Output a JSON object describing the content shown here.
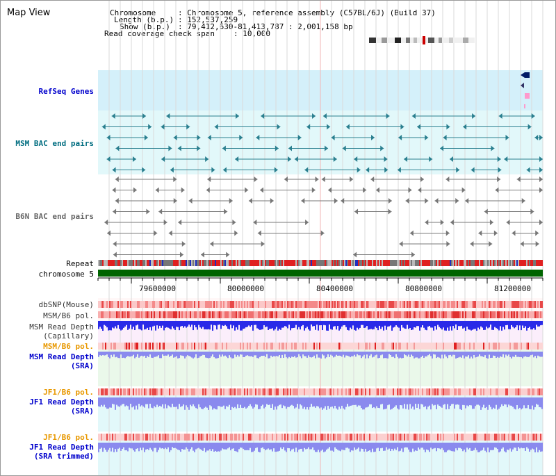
{
  "page": {
    "title": "Map View"
  },
  "info": {
    "chromosome_label": "Chromosome",
    "chromosome_value": ": Chromosome 5, reference assembly (C57BL/6J) (Build 37)",
    "length_label": "Length (b.p.)",
    "length_value": ": 152,537,259",
    "show_label": "Show (b.p.)",
    "show_value": ": 79,412,630-81,413,787 : 2,001,158 bp",
    "coverage_label": "Read coverage check span",
    "coverage_value": ": 10,000"
  },
  "tracks": {
    "refseq": "RefSeq Genes",
    "msm_bac": "MSM BAC end pairs",
    "b6n_bac": "B6N BAC end pairs",
    "repeat": "Repeat",
    "chromosome": "chromosome 5",
    "dbsnp": "dbSNP(Mouse)",
    "msm_b6_pol_1": "MSM/B6 pol.",
    "msm_read_depth_cap_1": "MSM Read Depth",
    "msm_read_depth_cap_2": "(Capillary)",
    "msm_b6_pol_2": "MSM/B6 pol.",
    "msm_read_depth_sra_1": "MSM Read Depth",
    "msm_read_depth_sra_2": "(SRA)",
    "jf1_b6_pol_1": "JF1/B6 pol.",
    "jf1_read_depth_sra_1": "JF1 Read Depth",
    "jf1_read_depth_sra_2": "(SRA)",
    "jf1_b6_pol_2": "JF1/B6 pol.",
    "jf1_read_depth_trim_1": "JF1 Read Depth",
    "jf1_read_depth_trim_2": "(SRA trimmed)"
  },
  "axis": {
    "ticks": [
      "79600000",
      "80000000",
      "80400000",
      "80800000",
      "81200000"
    ]
  },
  "colors": {
    "blue_label": "#0000cc",
    "teal_label": "#006d80",
    "gray_label": "#666666",
    "orange_label": "#e89800",
    "refseq_bg": "#d4f0fa",
    "msm_bg": "#e2f8fa",
    "b6n_bg": "#ffffff",
    "chromosome_bar": "#006400",
    "depth_blue": "#2a2ae8",
    "depth_light": "#8a8aee"
  }
}
